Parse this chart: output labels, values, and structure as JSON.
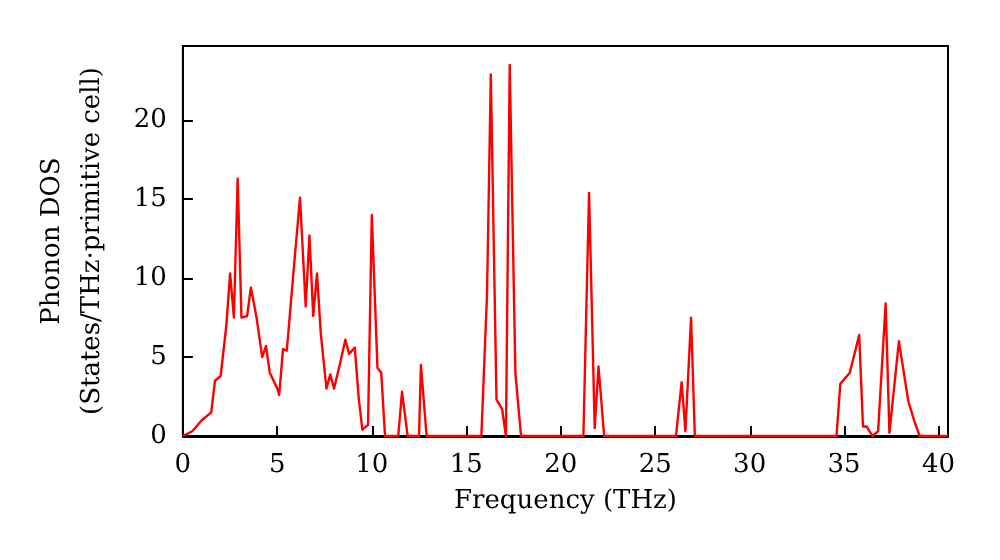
{
  "chart_data": {
    "type": "line",
    "xlabel": "Frequency (THz)",
    "ylabel": "Phonon DOS\n(States/THz·primitive cell)",
    "xlim": [
      0,
      40.5
    ],
    "xticks": [
      0,
      5,
      10,
      15,
      20,
      25,
      30,
      35,
      40
    ],
    "ylim": [
      0,
      24.7
    ],
    "yticks": [
      0,
      5,
      10,
      15,
      20
    ],
    "grid": false,
    "marker": "none",
    "line_style": "solid",
    "series": [
      {
        "color": "#ff0000",
        "x": [
          0,
          0.5,
          1,
          1.5,
          1.7,
          2.0,
          2.3,
          2.5,
          2.7,
          2.9,
          3.1,
          3.4,
          3.6,
          3.9,
          4.2,
          4.4,
          4.6,
          5.0,
          5.1,
          5.3,
          5.5,
          5.9,
          6.2,
          6.5,
          6.7,
          6.9,
          7.1,
          7.3,
          7.6,
          7.8,
          8.0,
          8.3,
          8.6,
          8.8,
          9.1,
          9.3,
          9.5,
          9.8,
          10.0,
          10.3,
          10.5,
          10.7,
          11.4,
          11.6,
          11.9,
          12.5,
          12.6,
          12.9,
          15.8,
          16.1,
          16.3,
          16.6,
          16.9,
          17.1,
          17.3,
          17.6,
          17.9,
          21.2,
          21.5,
          21.8,
          22.0,
          22.3,
          26.1,
          26.4,
          26.6,
          26.9,
          27.1,
          34.6,
          34.8,
          35.3,
          35.8,
          36.0,
          36.2,
          36.5,
          36.8,
          37.2,
          37.4,
          37.9,
          38.4,
          38.7,
          39.0,
          40.5
        ],
        "values": [
          0,
          0.3,
          1,
          1.5,
          3.5,
          3.8,
          7,
          10.3,
          7.5,
          16.3,
          7.5,
          7.6,
          9.4,
          7.5,
          5,
          5.7,
          4,
          3,
          2.6,
          5.5,
          5.4,
          11,
          15.1,
          8.2,
          12.7,
          7.6,
          10.3,
          6.5,
          3,
          3.9,
          3,
          4.5,
          6.1,
          5.2,
          5.6,
          2.5,
          0.4,
          0.7,
          14,
          4.3,
          4,
          0,
          0,
          2.8,
          0,
          0,
          4.5,
          0,
          0,
          9,
          22.9,
          2.3,
          1.7,
          0,
          23.5,
          4,
          0,
          0,
          15.4,
          0.5,
          4.4,
          0,
          0,
          3.4,
          0.3,
          7.5,
          0,
          0,
          3.3,
          4,
          6.4,
          0.6,
          0.6,
          0,
          0.3,
          8.4,
          0.2,
          6,
          2.2,
          1,
          0,
          0
        ]
      }
    ]
  }
}
